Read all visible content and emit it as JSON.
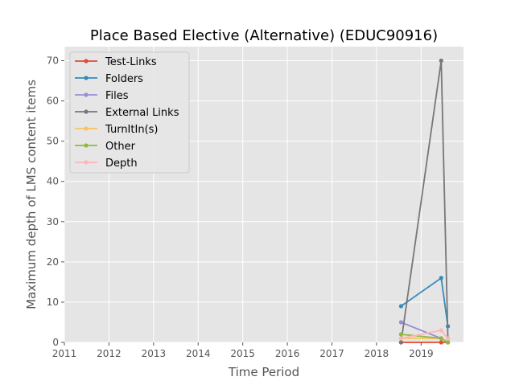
{
  "chart_data": {
    "type": "line",
    "title": "Place Based Elective (Alternative) (EDUC90916)",
    "xlabel": "Time Period",
    "ylabel": "Maximum depth of LMS content items",
    "xlim": [
      2011.0,
      2019.95
    ],
    "ylim": [
      0,
      73.5
    ],
    "xticks": [
      2011,
      2012,
      2013,
      2014,
      2015,
      2016,
      2017,
      2018,
      2019
    ],
    "xtick_labels": [
      "2011",
      "2012",
      "2013",
      "2014",
      "2015",
      "2016",
      "2017",
      "2018",
      "2019"
    ],
    "yticks": [
      0,
      10,
      20,
      30,
      40,
      50,
      60,
      70
    ],
    "ytick_labels": [
      "0",
      "10",
      "20",
      "30",
      "40",
      "50",
      "60",
      "70"
    ],
    "grid": true,
    "legend_position": "top-left",
    "background": "#e5e5e5",
    "x": [
      2018.55,
      2019.45,
      2019.6
    ],
    "series": [
      {
        "name": "Test-Links",
        "color": "#e24a33",
        "values": [
          0,
          0,
          0
        ]
      },
      {
        "name": "Folders",
        "color": "#348abd",
        "values": [
          9,
          16,
          4
        ]
      },
      {
        "name": "Files",
        "color": "#988ed5",
        "values": [
          5,
          1,
          0
        ]
      },
      {
        "name": "External Links",
        "color": "#777777",
        "values": [
          0,
          70,
          1
        ]
      },
      {
        "name": "TurnItIn(s)",
        "color": "#fbc15e",
        "values": [
          1,
          1,
          0
        ]
      },
      {
        "name": "Other",
        "color": "#8eba42",
        "values": [
          2,
          1,
          0
        ]
      },
      {
        "name": "Depth",
        "color": "#ffb5b8",
        "values": [
          1,
          3,
          1
        ]
      }
    ]
  }
}
